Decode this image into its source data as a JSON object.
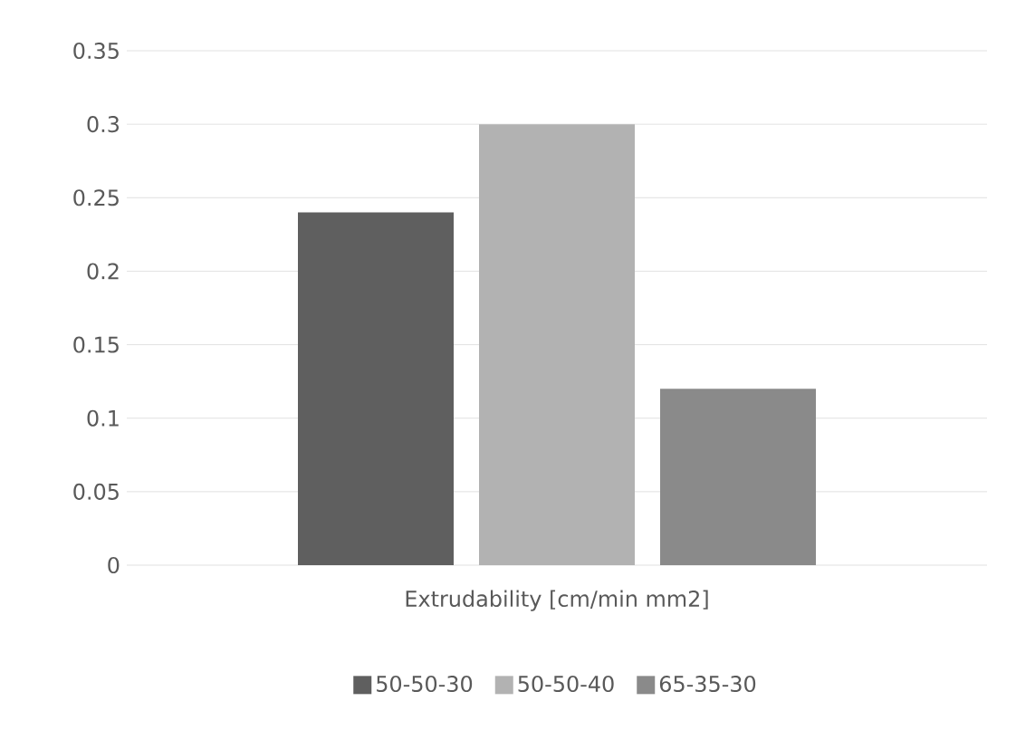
{
  "chart_data": {
    "type": "bar",
    "categories": [
      "Extrudability [cm/min mm2]"
    ],
    "series": [
      {
        "name": "50-50-30",
        "color": "#5f5f5f",
        "values": [
          0.24
        ]
      },
      {
        "name": "50-50-40",
        "color": "#b2b2b2",
        "values": [
          0.3
        ]
      },
      {
        "name": "65-35-30",
        "color": "#8a8a8a",
        "values": [
          0.12
        ]
      }
    ],
    "ylim": [
      0,
      0.35
    ],
    "yticks": [
      0,
      0.05,
      0.1,
      0.15,
      0.2,
      0.25,
      0.3,
      0.35
    ],
    "grid": "y",
    "legend": "bottom"
  }
}
